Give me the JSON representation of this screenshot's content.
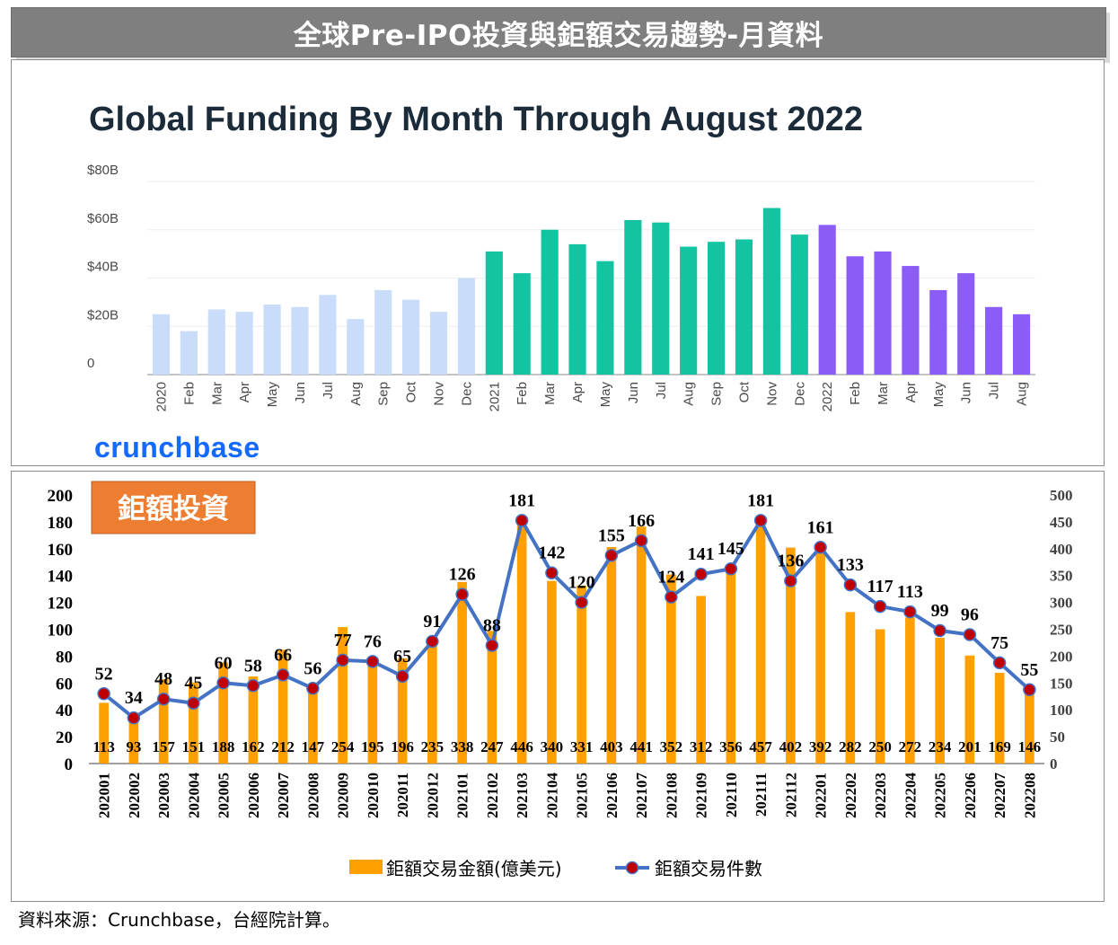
{
  "banner_title": "全球Pre-IPO投資與鉅額交易趨勢-月資料",
  "source_note": "資料來源：Crunchbase，台經院計算。",
  "colors": {
    "banner_bg": "#7f7f7f",
    "light_blue": "#c9dcf9",
    "teal": "#13c4a3",
    "purple": "#8b5cf6",
    "orange": "#ff9f00",
    "line_blue": "#4472c4",
    "marker_red": "#c00000",
    "badge_orange": "#ed7d31",
    "crunchbase_blue": "#146aff",
    "title_navy": "#1c2b39"
  },
  "chart_data": [
    {
      "type": "bar",
      "title": "Global Funding By Month Through August 2022",
      "brand": "crunchbase",
      "categories": [
        "2020",
        "Feb",
        "Mar",
        "Apr",
        "May",
        "Jun",
        "Jul",
        "Aug",
        "Sep",
        "Oct",
        "Nov",
        "Dec",
        "2021",
        "Feb",
        "Mar",
        "Apr",
        "May",
        "Jun",
        "Jul",
        "Aug",
        "Sep",
        "Oct",
        "Nov",
        "Dec",
        "2022",
        "Feb",
        "Mar",
        "Apr",
        "May",
        "Jun",
        "Jul",
        "Aug"
      ],
      "values": [
        25,
        18,
        27,
        26,
        29,
        28,
        33,
        23,
        35,
        31,
        26,
        40,
        51,
        42,
        60,
        54,
        47,
        64,
        63,
        53,
        55,
        56,
        69,
        58,
        62,
        49,
        51,
        45,
        35,
        42,
        28,
        25
      ],
      "year_group": [
        2020,
        2020,
        2020,
        2020,
        2020,
        2020,
        2020,
        2020,
        2020,
        2020,
        2020,
        2020,
        2021,
        2021,
        2021,
        2021,
        2021,
        2021,
        2021,
        2021,
        2021,
        2021,
        2021,
        2021,
        2022,
        2022,
        2022,
        2022,
        2022,
        2022,
        2022,
        2022
      ],
      "unit": "$B",
      "y_ticks": [
        "0",
        "$20B",
        "$40B",
        "$60B",
        "$80B"
      ],
      "ylim": [
        0,
        80
      ],
      "grid": true
    },
    {
      "type": "bar+line",
      "badge": "鉅額投資",
      "categories": [
        "202001",
        "202002",
        "202003",
        "202004",
        "202005",
        "202006",
        "202007",
        "202008",
        "202009",
        "202010",
        "202011",
        "202012",
        "202101",
        "202102",
        "202103",
        "202104",
        "202105",
        "202106",
        "202107",
        "202108",
        "202109",
        "202110",
        "202111",
        "202112",
        "202201",
        "202202",
        "202203",
        "202204",
        "202205",
        "202206",
        "202207",
        "202208"
      ],
      "series": [
        {
          "name": "鉅額交易金額(億美元)",
          "type": "bar",
          "axis": "right",
          "values": [
            113,
            93,
            157,
            151,
            188,
            162,
            212,
            147,
            254,
            195,
            196,
            235,
            338,
            247,
            446,
            340,
            331,
            403,
            441,
            352,
            312,
            356,
            457,
            402,
            392,
            282,
            250,
            272,
            234,
            201,
            169,
            146
          ]
        },
        {
          "name": "鉅額交易件數",
          "type": "line",
          "axis": "left",
          "values": [
            52,
            34,
            48,
            45,
            60,
            58,
            66,
            56,
            77,
            76,
            65,
            91,
            126,
            88,
            181,
            142,
            120,
            155,
            166,
            124,
            141,
            145,
            181,
            136,
            161,
            133,
            117,
            113,
            99,
            96,
            75,
            55
          ]
        }
      ],
      "left_axis_ticks": [
        "0",
        "20",
        "40",
        "60",
        "80",
        "100",
        "120",
        "140",
        "160",
        "180",
        "200"
      ],
      "left_ylim": [
        0,
        200
      ],
      "right_axis_ticks": [
        "0",
        "50",
        "100",
        "150",
        "200",
        "250",
        "300",
        "350",
        "400",
        "450",
        "500"
      ],
      "right_ylim": [
        0,
        500
      ],
      "legend_position": "bottom"
    }
  ]
}
